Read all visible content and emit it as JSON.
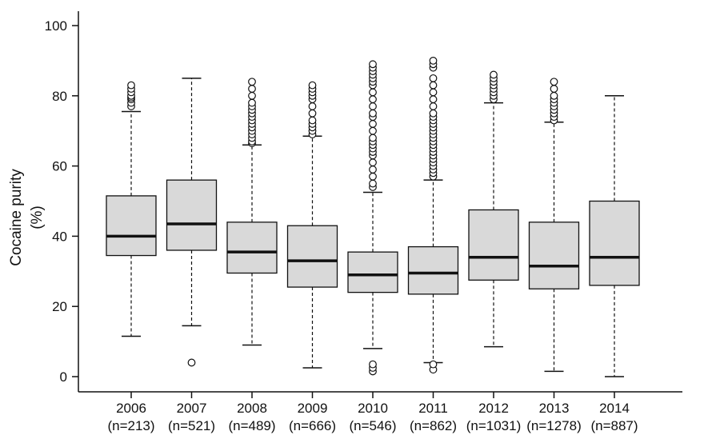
{
  "chart_data": {
    "type": "boxplot",
    "title": "",
    "ylabel_line1": "Cocaine purity",
    "ylabel_line2": "(%)",
    "xlabel": "",
    "ylim": [
      0,
      100
    ],
    "yticks": [
      0,
      20,
      40,
      60,
      80,
      100
    ],
    "grid": false,
    "box_fill": "#d9d9d9",
    "stroke_color": "#111111",
    "categories": [
      {
        "year": "2006",
        "n": "(n=213)"
      },
      {
        "year": "2007",
        "n": "(n=521)"
      },
      {
        "year": "2008",
        "n": "(n=489)"
      },
      {
        "year": "2009",
        "n": "(n=666)"
      },
      {
        "year": "2010",
        "n": "(n=546)"
      },
      {
        "year": "2011",
        "n": "(n=862)"
      },
      {
        "year": "2012",
        "n": "(n=1031)"
      },
      {
        "year": "2013",
        "n": "(n=1278)"
      },
      {
        "year": "2014",
        "n": "(n=887)"
      }
    ],
    "boxes": [
      {
        "whisker_low": 11.5,
        "q1": 34.5,
        "median": 40,
        "q3": 51.5,
        "whisker_high": 75.5,
        "outliers": [
          77,
          78,
          79,
          79.5,
          80,
          81,
          82,
          83
        ]
      },
      {
        "whisker_low": 14.5,
        "q1": 36,
        "median": 43.5,
        "q3": 56,
        "whisker_high": 85,
        "outliers": [
          4
        ]
      },
      {
        "whisker_low": 9,
        "q1": 29.5,
        "median": 35.5,
        "q3": 44,
        "whisker_high": 66,
        "outliers": [
          66.5,
          67,
          68,
          69,
          70,
          71,
          72,
          73,
          74,
          75,
          76,
          77,
          78,
          80,
          82,
          84
        ]
      },
      {
        "whisker_low": 2.5,
        "q1": 25.5,
        "median": 33,
        "q3": 43,
        "whisker_high": 68.5,
        "outliers": [
          69,
          70,
          71,
          72,
          73,
          75,
          77,
          79,
          80,
          81,
          82,
          83
        ]
      },
      {
        "whisker_low": 8,
        "q1": 24,
        "median": 29,
        "q3": 35.5,
        "whisker_high": 52.5,
        "outliers": [
          1.5,
          2.5,
          3.5,
          54,
          55,
          57,
          59,
          61,
          63,
          64,
          65,
          66,
          67,
          68,
          70,
          72,
          74,
          75,
          77,
          79,
          81,
          83,
          84,
          85,
          86,
          87,
          88,
          89
        ]
      },
      {
        "whisker_low": 4,
        "q1": 23.5,
        "median": 29.5,
        "q3": 37,
        "whisker_high": 56,
        "outliers": [
          2,
          3.5,
          57,
          58,
          59,
          60,
          61,
          62,
          63,
          64,
          65,
          66,
          67,
          68,
          69,
          70,
          71,
          72,
          73,
          74,
          75,
          77,
          79,
          81,
          83,
          85,
          88,
          89,
          90
        ]
      },
      {
        "whisker_low": 8.5,
        "q1": 27.5,
        "median": 34,
        "q3": 47.5,
        "whisker_high": 78,
        "outliers": [
          79,
          80,
          81,
          82,
          83,
          84,
          85,
          86
        ]
      },
      {
        "whisker_low": 1.5,
        "q1": 25,
        "median": 31.5,
        "q3": 44,
        "whisker_high": 72.5,
        "outliers": [
          73,
          74,
          75,
          76,
          77,
          78,
          79,
          80,
          82,
          84
        ]
      },
      {
        "whisker_low": 0,
        "q1": 26,
        "median": 34,
        "q3": 50,
        "whisker_high": 80,
        "outliers": []
      }
    ]
  }
}
